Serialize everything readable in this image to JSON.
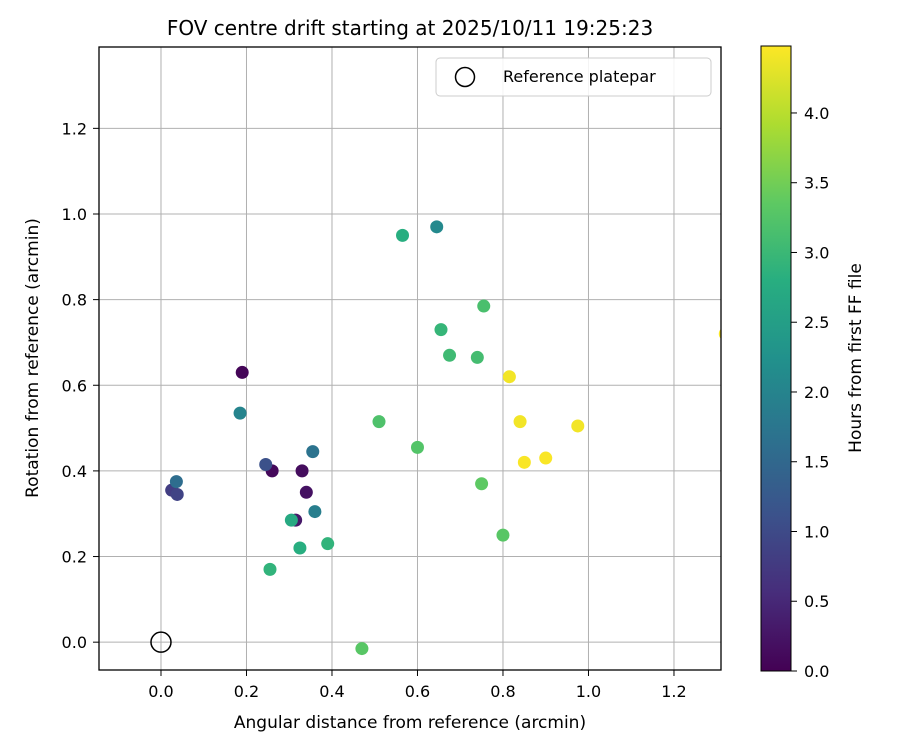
{
  "chart_data": {
    "type": "scatter",
    "title": "FOV centre drift starting at 2025/10/11 19:25:23",
    "xlabel": "Angular distance from reference (arcmin)",
    "ylabel": "Rotation from reference (arcmin)",
    "xlim": [
      -0.145,
      1.31
    ],
    "ylim": [
      -0.065,
      1.39
    ],
    "xticks": [
      0.0,
      0.2,
      0.4,
      0.6,
      0.8,
      1.0,
      1.2
    ],
    "xtick_labels": [
      "0.0",
      "0.2",
      "0.4",
      "0.6",
      "0.8",
      "1.0",
      "1.2"
    ],
    "yticks": [
      0.0,
      0.2,
      0.4,
      0.6,
      0.8,
      1.0,
      1.2
    ],
    "ytick_labels": [
      "0.0",
      "0.2",
      "0.4",
      "0.6",
      "0.8",
      "1.0",
      "1.2"
    ],
    "grid": true,
    "legend": {
      "position": "top-right",
      "entries": [
        "Reference platepar"
      ]
    },
    "reference_point": {
      "x": 0.0,
      "y": 0.0,
      "label": "Reference platepar"
    },
    "colorbar": {
      "label": "Hours from first FF file",
      "range": [
        0.0,
        4.48
      ],
      "ticks": [
        0.0,
        0.5,
        1.0,
        1.5,
        2.0,
        2.5,
        3.0,
        3.5,
        4.0
      ],
      "tick_labels": [
        "0.0",
        "0.5",
        "1.0",
        "1.5",
        "2.0",
        "2.5",
        "3.0",
        "3.5",
        "4.0"
      ],
      "colormap": [
        "#440154",
        "#472d7b",
        "#3b528b",
        "#2c728e",
        "#21918c",
        "#28ae80",
        "#5ec962",
        "#addc30",
        "#fde725"
      ]
    },
    "points": [
      {
        "x": 0.19,
        "y": 0.63,
        "hours": 0.05
      },
      {
        "x": 0.26,
        "y": 0.4,
        "hours": 0.1
      },
      {
        "x": 0.33,
        "y": 0.4,
        "hours": 0.15
      },
      {
        "x": 0.34,
        "y": 0.35,
        "hours": 0.2
      },
      {
        "x": 0.315,
        "y": 0.285,
        "hours": 0.3
      },
      {
        "x": 0.025,
        "y": 0.355,
        "hours": 0.8
      },
      {
        "x": 0.038,
        "y": 0.345,
        "hours": 0.9
      },
      {
        "x": 0.245,
        "y": 0.415,
        "hours": 1.1
      },
      {
        "x": 0.036,
        "y": 0.375,
        "hours": 1.6
      },
      {
        "x": 0.355,
        "y": 0.445,
        "hours": 1.7
      },
      {
        "x": 0.36,
        "y": 0.305,
        "hours": 1.9
      },
      {
        "x": 0.185,
        "y": 0.535,
        "hours": 2.0
      },
      {
        "x": 0.645,
        "y": 0.97,
        "hours": 2.1
      },
      {
        "x": 0.305,
        "y": 0.285,
        "hours": 2.7
      },
      {
        "x": 0.325,
        "y": 0.22,
        "hours": 2.8
      },
      {
        "x": 0.39,
        "y": 0.23,
        "hours": 2.9
      },
      {
        "x": 0.255,
        "y": 0.17,
        "hours": 2.9
      },
      {
        "x": 0.565,
        "y": 0.95,
        "hours": 2.8
      },
      {
        "x": 0.655,
        "y": 0.73,
        "hours": 2.95
      },
      {
        "x": 0.675,
        "y": 0.67,
        "hours": 3.05
      },
      {
        "x": 0.74,
        "y": 0.665,
        "hours": 3.1
      },
      {
        "x": 0.755,
        "y": 0.785,
        "hours": 3.15
      },
      {
        "x": 0.51,
        "y": 0.515,
        "hours": 3.2
      },
      {
        "x": 0.6,
        "y": 0.455,
        "hours": 3.25
      },
      {
        "x": 0.75,
        "y": 0.37,
        "hours": 3.35
      },
      {
        "x": 0.8,
        "y": 0.25,
        "hours": 3.3
      },
      {
        "x": 0.47,
        "y": -0.015,
        "hours": 3.3
      },
      {
        "x": 0.815,
        "y": 0.62,
        "hours": 4.4
      },
      {
        "x": 0.84,
        "y": 0.515,
        "hours": 4.4
      },
      {
        "x": 0.85,
        "y": 0.42,
        "hours": 4.45
      },
      {
        "x": 0.9,
        "y": 0.43,
        "hours": 4.45
      },
      {
        "x": 0.975,
        "y": 0.505,
        "hours": 4.4
      },
      {
        "x": 1.32,
        "y": 0.72,
        "hours": 4.45
      }
    ]
  }
}
